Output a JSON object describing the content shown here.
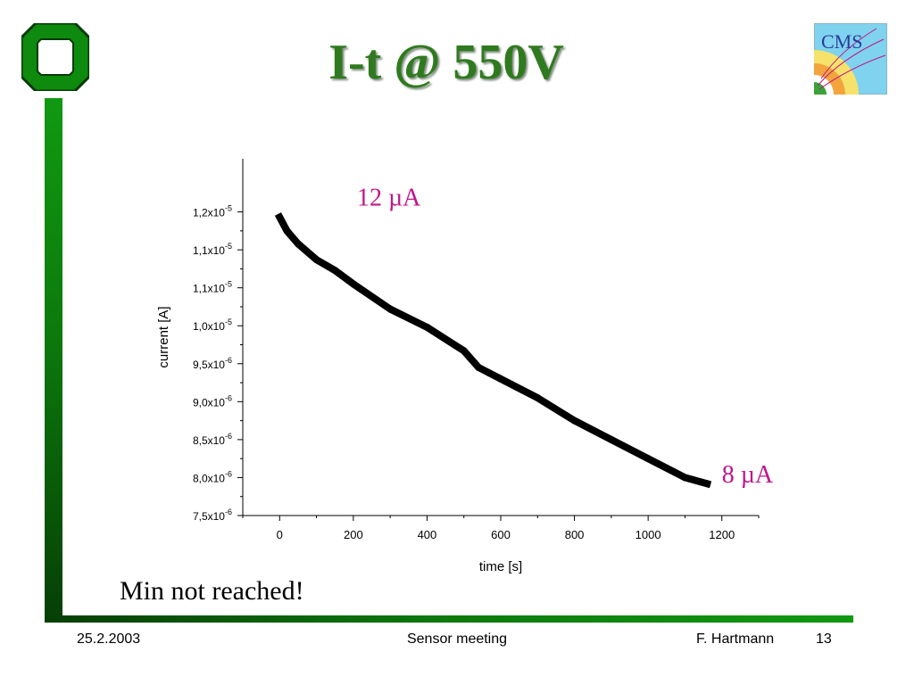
{
  "title": "I-t @ 550V",
  "note": "Min not reached!",
  "footer": {
    "date": "25.2.2003",
    "center": "Sensor meeting",
    "author": "F. Hartmann",
    "page": "13"
  },
  "logos": {
    "left": "university-logo",
    "right_text": "CMS"
  },
  "colors": {
    "title": "#2f7a1e",
    "annotation": "#c0168a",
    "bar_green": "#119911",
    "bar_dark": "#063f06"
  },
  "chart_data": {
    "type": "line",
    "xlabel": "time [s]",
    "ylabel": "current [A]",
    "xlim": [
      -100,
      1300
    ],
    "ylim": [
      7.5e-06,
      1.22e-05
    ],
    "x_ticks": [
      {
        "v": 0,
        "label": "0"
      },
      {
        "v": 200,
        "label": "200"
      },
      {
        "v": 400,
        "label": "400"
      },
      {
        "v": 600,
        "label": "600"
      },
      {
        "v": 800,
        "label": "800"
      },
      {
        "v": 1000,
        "label": "1000"
      },
      {
        "v": 1200,
        "label": "1200"
      }
    ],
    "y_ticks": [
      {
        "v": 7.5e-06,
        "m": "7,5x10",
        "e": "-6"
      },
      {
        "v": 8e-06,
        "m": "8,0x10",
        "e": "-6"
      },
      {
        "v": 8.5e-06,
        "m": "8,5x10",
        "e": "-6"
      },
      {
        "v": 9e-06,
        "m": "9,0x10",
        "e": "-6"
      },
      {
        "v": 9.5e-06,
        "m": "9,5x10",
        "e": "-6"
      },
      {
        "v": 1e-05,
        "m": "1,0x10",
        "e": "-5"
      },
      {
        "v": 1.05e-05,
        "m": "1,1x10",
        "e": "-5"
      },
      {
        "v": 1.1e-05,
        "m": "1,1x10",
        "e": "-5"
      },
      {
        "v": 1.15e-05,
        "m": "1,2x10",
        "e": "-5"
      }
    ],
    "series": [
      {
        "x": [
          0,
          20,
          50,
          100,
          150,
          200,
          300,
          400,
          500,
          540,
          600,
          700,
          800,
          900,
          1000,
          1100,
          1160
        ],
        "y": [
          1.143e-05,
          1.125e-05,
          1.108e-05,
          1.087e-05,
          1.073e-05,
          1.055e-05,
          1.022e-05,
          9.98e-06,
          9.67e-06,
          9.45e-06,
          9.3e-06,
          9.05e-06,
          8.75e-06,
          8.5e-06,
          8.25e-06,
          8e-06,
          7.92e-06
        ]
      }
    ],
    "annotations": [
      {
        "text": "12 µA",
        "x": 210,
        "y": 1.17e-05
      },
      {
        "text": "8 µA",
        "x": 1200,
        "y": 8.05e-06
      }
    ]
  }
}
